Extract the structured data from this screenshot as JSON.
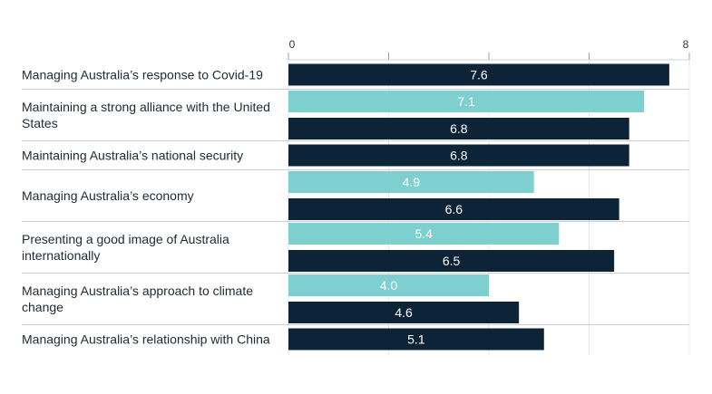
{
  "chart_data": {
    "type": "bar",
    "orientation": "horizontal",
    "title": "",
    "xlabel": "",
    "ylabel": "",
    "xlim": [
      0,
      8
    ],
    "ticks": [
      0,
      2,
      4,
      6,
      8
    ],
    "tick_labels": [
      "0",
      "",
      "",
      "",
      "8"
    ],
    "grid": true,
    "categories": [
      "Managing Australia’s response to Covid-19",
      "Maintaining a strong alliance with the United States",
      "Maintaining Australia’s national security",
      "Managing Australia’s economy",
      "Presenting a good image of Australia internationally",
      "Managing Australia’s approach to climate change",
      "Managing Australia’s relationship with China"
    ],
    "category_lines": [
      [
        "Managing Australia’s response to Covid-19"
      ],
      [
        "Maintaining a strong alliance with the United",
        "States"
      ],
      [
        "Maintaining Australia’s national security"
      ],
      [
        "Managing Australia’s economy"
      ],
      [
        "Presenting a good image of Australia",
        "internationally"
      ],
      [
        "Managing Australia’s approach to climate",
        "change"
      ],
      [
        "Managing Australia’s relationship with China"
      ]
    ],
    "series": [
      {
        "color": "#7ecfd0",
        "values": [
          null,
          7.1,
          null,
          4.9,
          5.4,
          4.0,
          null
        ],
        "labels": [
          "",
          "7.1",
          "",
          "4.9",
          "5.4",
          "4.0",
          ""
        ]
      },
      {
        "color": "#0d2438",
        "values": [
          7.6,
          6.8,
          6.8,
          6.6,
          6.5,
          4.6,
          5.1
        ],
        "labels": [
          "7.6",
          "6.8",
          "6.8",
          "6.6",
          "6.5",
          "4.6",
          "5.1"
        ]
      }
    ]
  }
}
